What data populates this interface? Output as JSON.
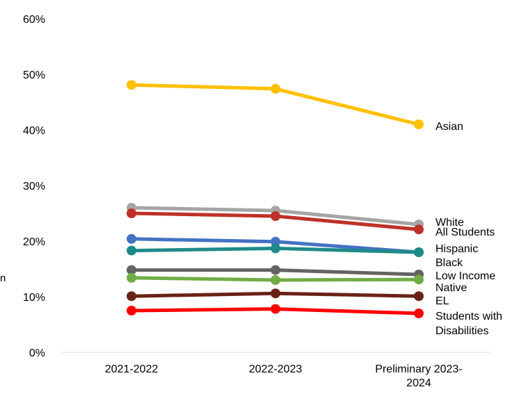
{
  "chart_data": {
    "type": "line",
    "categories": [
      "2021-2022",
      "2022-2023",
      "Preliminary 2023-2024"
    ],
    "category_lines": [
      [
        "2021-2022"
      ],
      [
        "2022-2023"
      ],
      [
        "Preliminary 2023-",
        "2024"
      ]
    ],
    "y_ticks": [
      "0%",
      "10%",
      "20%",
      "30%",
      "40%",
      "50%",
      "60%"
    ],
    "ylim": [
      0,
      60
    ],
    "grid": false,
    "legend": "labels at right end of lines",
    "series": [
      {
        "name": "Asian",
        "values": [
          48.1,
          47.4,
          41.0
        ],
        "color": "#FFC000",
        "label_lines": [
          "Asian"
        ]
      },
      {
        "name": "White",
        "values": [
          26.0,
          25.5,
          23.0
        ],
        "color": "#A5A5A5",
        "label_lines": [
          "White"
        ]
      },
      {
        "name": "All Students",
        "values": [
          25.0,
          24.5,
          22.1
        ],
        "color": "#BE3127",
        "label_lines": [
          "All Students"
        ]
      },
      {
        "name": "Hispanic",
        "values": [
          20.4,
          19.9,
          18.0
        ],
        "color": "#4472C4",
        "label_lines": [
          "Hispanic"
        ]
      },
      {
        "name": "Black",
        "values": [
          18.3,
          18.7,
          18.0
        ],
        "color": "#1F8A8A",
        "label_lines": [
          "Black"
        ]
      },
      {
        "name": "Low Income",
        "values": [
          14.8,
          14.8,
          14.0
        ],
        "color": "#636363",
        "label_lines": [
          "Low Income"
        ]
      },
      {
        "name": "Native",
        "values": [
          13.4,
          13.0,
          13.1
        ],
        "color": "#70AD47",
        "label_lines": [
          "Native"
        ]
      },
      {
        "name": "EL",
        "values": [
          10.1,
          10.6,
          10.1
        ],
        "color": "#6B2116",
        "label_lines": [
          "EL"
        ]
      },
      {
        "name": "Students with Disabilities",
        "values": [
          7.5,
          7.8,
          7.0
        ],
        "color": "#FF0000",
        "label_lines": [
          "Students with",
          "Disabilities"
        ]
      }
    ]
  },
  "left_edge_label": "n"
}
